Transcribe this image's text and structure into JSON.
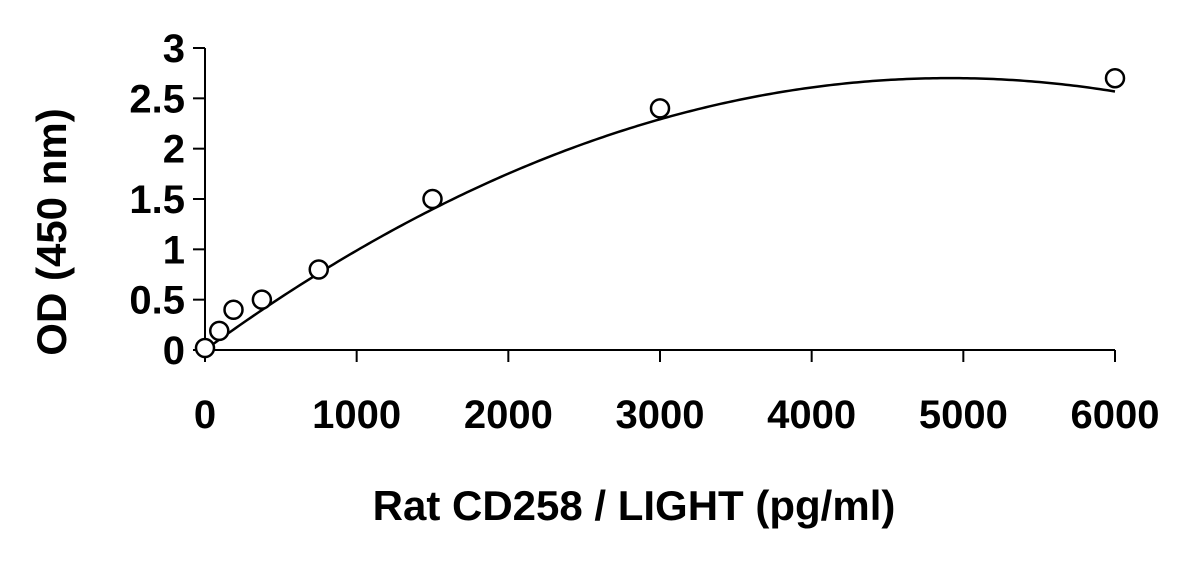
{
  "chart_data": {
    "type": "scatter",
    "title": "",
    "xlabel": "Rat CD258 / LIGHT (pg/ml)",
    "ylabel": "OD (450 nm)",
    "xlim": [
      0,
      6000
    ],
    "ylim": [
      0,
      3
    ],
    "x_ticks": [
      0,
      1000,
      2000,
      3000,
      4000,
      5000,
      6000
    ],
    "y_ticks": [
      0,
      0.5,
      1,
      1.5,
      2,
      2.5,
      3
    ],
    "x_tick_labels": [
      "0",
      "1000",
      "2000",
      "3000",
      "4000",
      "5000",
      "6000"
    ],
    "y_tick_labels": [
      "0",
      "0.5",
      "1",
      "1.5",
      "2",
      "2.5",
      "3"
    ],
    "grid": false,
    "legend": "none",
    "series": [
      {
        "marker": "open-circle",
        "x": [
          0,
          94,
          188,
          375,
          750,
          1500,
          3000,
          6000
        ],
        "y": [
          0.02,
          0.19,
          0.4,
          0.5,
          0.8,
          1.5,
          2.4,
          2.7
        ]
      }
    ],
    "fit_curve": {
      "type": "polynomial-2",
      "coefficients": [
        0.0,
        0.0011,
        -1.12e-07
      ]
    },
    "colors": {
      "line": "#000000",
      "marker_fill": "#ffffff",
      "marker_stroke": "#000000"
    }
  }
}
